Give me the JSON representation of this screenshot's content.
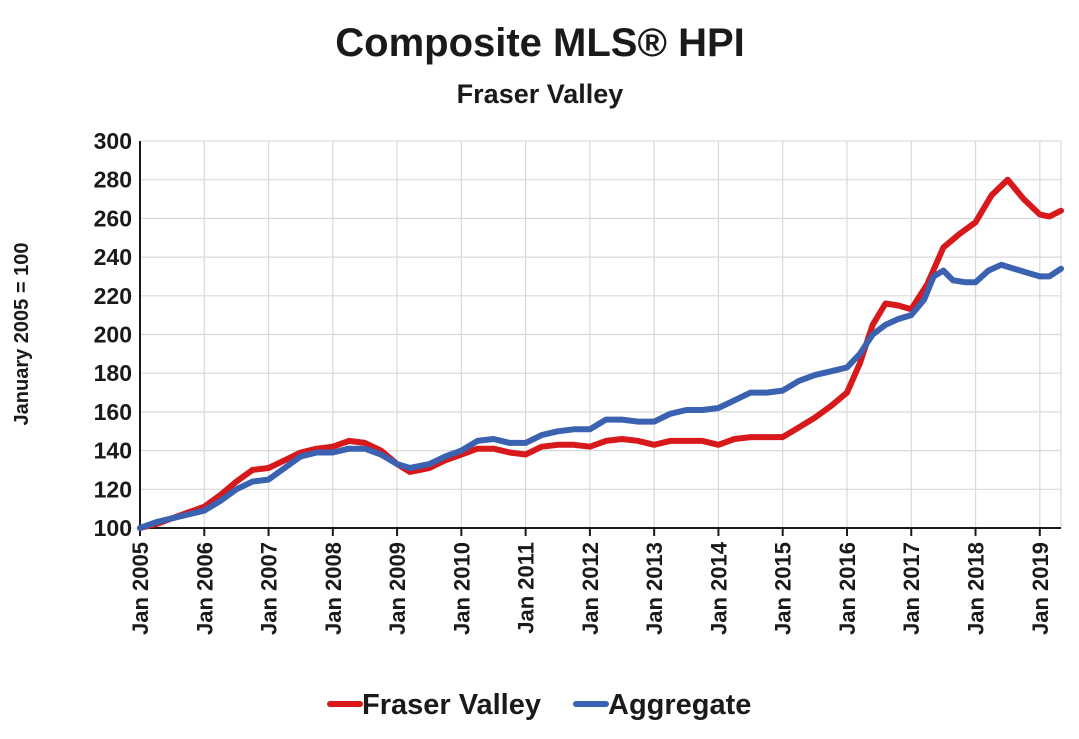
{
  "chart_data": {
    "type": "line",
    "title": "Composite MLS® HPI",
    "subtitle": "Fraser Valley",
    "ylabel": "January 2005 = 100",
    "xlabel": "",
    "ylim": [
      100,
      300
    ],
    "yticks": [
      100,
      120,
      140,
      160,
      180,
      200,
      220,
      240,
      260,
      280,
      300
    ],
    "xlim": [
      2005.0,
      2019.33
    ],
    "xticks": [
      {
        "x": 2005,
        "label": "Jan 2005"
      },
      {
        "x": 2006,
        "label": "Jan 2006"
      },
      {
        "x": 2007,
        "label": "Jan 2007"
      },
      {
        "x": 2008,
        "label": "Jan 2008"
      },
      {
        "x": 2009,
        "label": "Jan 2009"
      },
      {
        "x": 2010,
        "label": "Jan 2010"
      },
      {
        "x": 2011,
        "label": "Jan 2011"
      },
      {
        "x": 2012,
        "label": "Jan 2012"
      },
      {
        "x": 2013,
        "label": "Jan 2013"
      },
      {
        "x": 2014,
        "label": "Jan 2014"
      },
      {
        "x": 2015,
        "label": "Jan 2015"
      },
      {
        "x": 2016,
        "label": "Jan 2016"
      },
      {
        "x": 2017,
        "label": "Jan 2017"
      },
      {
        "x": 2018,
        "label": "Jan 2018"
      },
      {
        "x": 2019,
        "label": "Jan 2019"
      }
    ],
    "grid": true,
    "legend": "bottom",
    "series": [
      {
        "name": "Fraser Valley",
        "color": "#d7191c",
        "points": [
          [
            2005.0,
            100
          ],
          [
            2005.25,
            102
          ],
          [
            2005.5,
            105
          ],
          [
            2005.75,
            108
          ],
          [
            2006.0,
            111
          ],
          [
            2006.25,
            117
          ],
          [
            2006.5,
            124
          ],
          [
            2006.75,
            130
          ],
          [
            2007.0,
            131
          ],
          [
            2007.25,
            135
          ],
          [
            2007.5,
            139
          ],
          [
            2007.75,
            141
          ],
          [
            2008.0,
            142
          ],
          [
            2008.25,
            145
          ],
          [
            2008.5,
            144
          ],
          [
            2008.75,
            140
          ],
          [
            2009.0,
            133
          ],
          [
            2009.2,
            129
          ],
          [
            2009.5,
            131
          ],
          [
            2009.75,
            135
          ],
          [
            2010.0,
            138
          ],
          [
            2010.25,
            141
          ],
          [
            2010.5,
            141
          ],
          [
            2010.75,
            139
          ],
          [
            2011.0,
            138
          ],
          [
            2011.25,
            142
          ],
          [
            2011.5,
            143
          ],
          [
            2011.75,
            143
          ],
          [
            2012.0,
            142
          ],
          [
            2012.25,
            145
          ],
          [
            2012.5,
            146
          ],
          [
            2012.75,
            145
          ],
          [
            2013.0,
            143
          ],
          [
            2013.25,
            145
          ],
          [
            2013.5,
            145
          ],
          [
            2013.75,
            145
          ],
          [
            2014.0,
            143
          ],
          [
            2014.25,
            146
          ],
          [
            2014.5,
            147
          ],
          [
            2014.75,
            147
          ],
          [
            2015.0,
            147
          ],
          [
            2015.25,
            152
          ],
          [
            2015.5,
            157
          ],
          [
            2015.75,
            163
          ],
          [
            2016.0,
            170
          ],
          [
            2016.2,
            185
          ],
          [
            2016.4,
            205
          ],
          [
            2016.6,
            216
          ],
          [
            2016.8,
            215
          ],
          [
            2017.0,
            213
          ],
          [
            2017.25,
            226
          ],
          [
            2017.5,
            245
          ],
          [
            2017.75,
            252
          ],
          [
            2018.0,
            258
          ],
          [
            2018.25,
            272
          ],
          [
            2018.5,
            280
          ],
          [
            2018.75,
            270
          ],
          [
            2019.0,
            262
          ],
          [
            2019.15,
            261
          ],
          [
            2019.33,
            264
          ]
        ]
      },
      {
        "name": "Aggregate",
        "color": "#3a62b0",
        "points": [
          [
            2005.0,
            100
          ],
          [
            2005.25,
            103
          ],
          [
            2005.5,
            105
          ],
          [
            2005.75,
            107
          ],
          [
            2006.0,
            109
          ],
          [
            2006.25,
            114
          ],
          [
            2006.5,
            120
          ],
          [
            2006.75,
            124
          ],
          [
            2007.0,
            125
          ],
          [
            2007.25,
            131
          ],
          [
            2007.5,
            137
          ],
          [
            2007.75,
            139
          ],
          [
            2008.0,
            139
          ],
          [
            2008.25,
            141
          ],
          [
            2008.5,
            141
          ],
          [
            2008.75,
            138
          ],
          [
            2009.0,
            133
          ],
          [
            2009.2,
            131
          ],
          [
            2009.5,
            133
          ],
          [
            2009.75,
            137
          ],
          [
            2010.0,
            140
          ],
          [
            2010.25,
            145
          ],
          [
            2010.5,
            146
          ],
          [
            2010.75,
            144
          ],
          [
            2011.0,
            144
          ],
          [
            2011.25,
            148
          ],
          [
            2011.5,
            150
          ],
          [
            2011.75,
            151
          ],
          [
            2012.0,
            151
          ],
          [
            2012.25,
            156
          ],
          [
            2012.5,
            156
          ],
          [
            2012.75,
            155
          ],
          [
            2013.0,
            155
          ],
          [
            2013.25,
            159
          ],
          [
            2013.5,
            161
          ],
          [
            2013.75,
            161
          ],
          [
            2014.0,
            162
          ],
          [
            2014.25,
            166
          ],
          [
            2014.5,
            170
          ],
          [
            2014.75,
            170
          ],
          [
            2015.0,
            171
          ],
          [
            2015.25,
            176
          ],
          [
            2015.5,
            179
          ],
          [
            2015.75,
            181
          ],
          [
            2016.0,
            183
          ],
          [
            2016.2,
            190
          ],
          [
            2016.4,
            200
          ],
          [
            2016.6,
            205
          ],
          [
            2016.8,
            208
          ],
          [
            2017.0,
            210
          ],
          [
            2017.2,
            218
          ],
          [
            2017.35,
            230
          ],
          [
            2017.5,
            233
          ],
          [
            2017.65,
            228
          ],
          [
            2017.85,
            227
          ],
          [
            2018.0,
            227
          ],
          [
            2018.2,
            233
          ],
          [
            2018.4,
            236
          ],
          [
            2018.6,
            234
          ],
          [
            2018.8,
            232
          ],
          [
            2019.0,
            230
          ],
          [
            2019.15,
            230
          ],
          [
            2019.33,
            234
          ]
        ]
      }
    ]
  }
}
